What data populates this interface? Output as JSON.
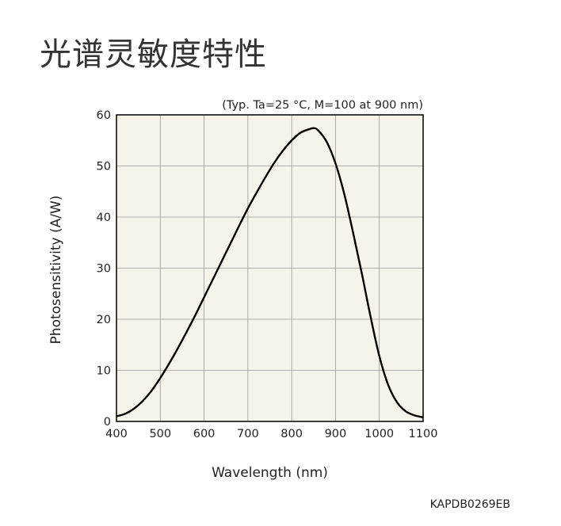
{
  "page": {
    "title": "光谱灵敏度特性",
    "doc_code": "KAPDB0269EB"
  },
  "chart_data": {
    "type": "line",
    "title": "",
    "condition_note": "(Typ. Ta=25 °C, M=100 at 900 nm)",
    "xlabel": "Wavelength (nm)",
    "ylabel": "Photosensitivity (A/W)",
    "xlim": [
      400,
      1100
    ],
    "ylim": [
      0,
      60
    ],
    "xticks": [
      400,
      500,
      600,
      700,
      800,
      900,
      1000,
      1100
    ],
    "yticks": [
      0,
      10,
      20,
      30,
      40,
      50,
      60
    ],
    "grid": true,
    "plot_background": "#f6f4ea",
    "line_color": "#000000",
    "series": [
      {
        "name": "",
        "x": [
          400,
          420,
          440,
          460,
          480,
          500,
          520,
          540,
          560,
          580,
          600,
          620,
          640,
          660,
          680,
          700,
          720,
          740,
          760,
          780,
          800,
          820,
          840,
          850,
          860,
          880,
          900,
          920,
          940,
          960,
          980,
          1000,
          1020,
          1040,
          1060,
          1080,
          1100
        ],
        "y": [
          1.0,
          1.5,
          2.5,
          4.0,
          6.0,
          8.5,
          11.3,
          14.3,
          17.5,
          20.8,
          24.3,
          27.8,
          31.3,
          34.8,
          38.3,
          41.7,
          44.8,
          47.8,
          50.6,
          53.0,
          55.0,
          56.5,
          57.2,
          57.4,
          57.0,
          54.7,
          50.5,
          44.5,
          37.0,
          29.0,
          20.5,
          12.8,
          7.2,
          3.8,
          2.0,
          1.2,
          0.8
        ]
      }
    ]
  }
}
